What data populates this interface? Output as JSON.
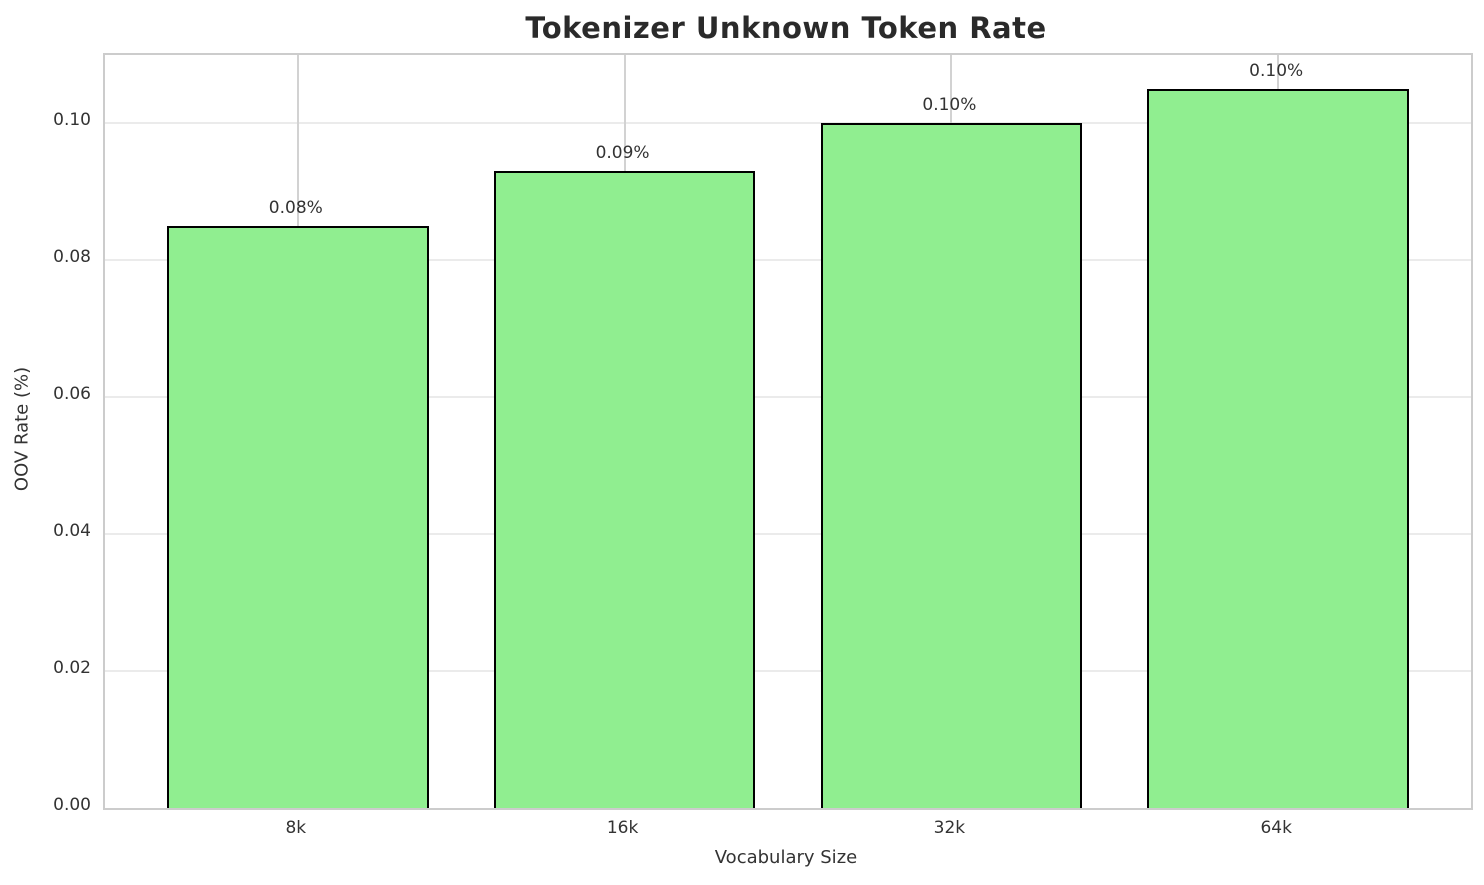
{
  "chart_data": {
    "type": "bar",
    "title": "Tokenizer Unknown Token Rate",
    "xlabel": "Vocabulary Size",
    "ylabel": "OOV Rate (%)",
    "categories": [
      "8k",
      "16k",
      "32k",
      "64k"
    ],
    "values": [
      0.085,
      0.093,
      0.1,
      0.105
    ],
    "bar_labels": [
      "0.08%",
      "0.09%",
      "0.10%",
      "0.10%"
    ],
    "ylim": [
      0,
      0.11
    ],
    "yticks": [
      "0.00",
      "0.02",
      "0.04",
      "0.06",
      "0.08",
      "0.10"
    ],
    "ytick_values": [
      0.0,
      0.02,
      0.04,
      0.06,
      0.08,
      0.1
    ],
    "bar_color": "#90EE90",
    "bar_edge_color": "#000000",
    "grid": true,
    "legend": "none"
  }
}
